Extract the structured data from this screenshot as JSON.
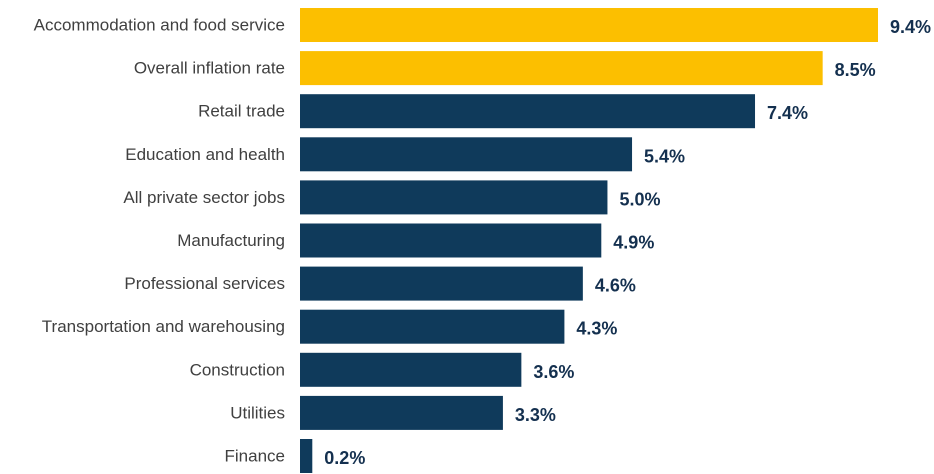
{
  "chart_data": {
    "type": "bar",
    "orientation": "horizontal",
    "title": "",
    "xlabel": "",
    "ylabel": "",
    "xlim": [
      0,
      9.4
    ],
    "grid": false,
    "legend": "none",
    "unit": "%",
    "categories": [
      "Accommodation and food service",
      "Overall inflation rate",
      "Retail trade",
      "Education and health",
      "All private sector jobs",
      "Manufacturing",
      "Professional services",
      "Transportation and warehousing",
      "Construction",
      "Utilities",
      "Finance"
    ],
    "values": [
      9.4,
      8.5,
      7.4,
      5.4,
      5.0,
      4.9,
      4.6,
      4.3,
      3.6,
      3.3,
      0.2
    ],
    "value_labels": [
      "9.4%",
      "8.5%",
      "7.4%",
      "5.4%",
      "5.0%",
      "4.9%",
      "4.6%",
      "4.3%",
      "3.6%",
      "3.3%",
      "0.2%"
    ],
    "highlighted": [
      true,
      true,
      false,
      false,
      false,
      false,
      false,
      false,
      false,
      false,
      false
    ],
    "colors": {
      "highlight": "#fcbf00",
      "default": "#0f3a5b",
      "label_text": "#404040",
      "value_text": "#14304f"
    }
  }
}
